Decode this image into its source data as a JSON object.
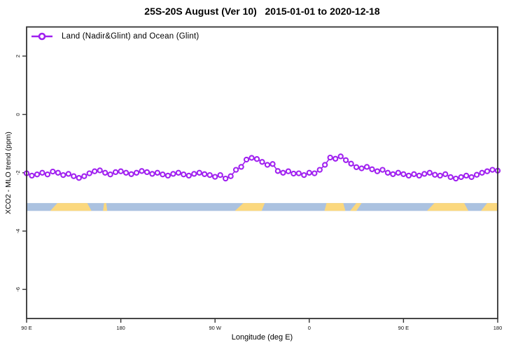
{
  "title": "25S-20S August (Ver 10)   2015-01-01 to 2020-12-18",
  "legend": {
    "label": "Land (Nadir&Glint) and Ocean (Glint)",
    "marker": "open-circle-on-line",
    "color": "#A020F0"
  },
  "chart_data": {
    "type": "line",
    "title": "25S-20S August (Ver 10)   2015-01-01 to 2020-12-18",
    "xlabel": "Longitude (deg E)",
    "ylabel": "XCO2 - MLO trend (ppm)",
    "xlim": [
      90,
      540
    ],
    "ylim": [
      -7,
      3
    ],
    "x_ticks": [
      90,
      180,
      270,
      360,
      450,
      540
    ],
    "x_tick_labels": [
      "90 E",
      "180",
      "90 W",
      "0",
      "90 E",
      "180"
    ],
    "y_ticks": [
      2,
      0,
      -2,
      -4,
      -6
    ],
    "y_tick_labels": [
      "2",
      "0",
      "-2",
      "-4",
      "-6"
    ],
    "grid": false,
    "legend_position": "topleft",
    "axis_color": "#333333",
    "series": [
      {
        "name": "Land (Nadir&Glint) and Ocean (Glint)",
        "color": "#A020F0",
        "marker": "open-circle",
        "x": [
          90,
          95,
          100,
          105,
          110,
          115,
          120,
          125,
          130,
          135,
          140,
          145,
          150,
          155,
          160,
          165,
          170,
          175,
          180,
          185,
          190,
          195,
          200,
          205,
          210,
          215,
          220,
          225,
          230,
          235,
          240,
          245,
          250,
          255,
          260,
          265,
          270,
          275,
          280,
          285,
          290,
          295,
          300,
          305,
          310,
          315,
          320,
          325,
          330,
          335,
          340,
          345,
          350,
          355,
          360,
          365,
          370,
          375,
          380,
          385,
          390,
          395,
          400,
          405,
          410,
          415,
          420,
          425,
          430,
          435,
          440,
          445,
          450,
          455,
          460,
          465,
          470,
          475,
          480,
          485,
          490,
          495,
          500,
          505,
          510,
          515,
          520,
          525,
          530,
          535,
          540
        ],
        "values": [
          -2.02,
          -2.1,
          -2.06,
          -2.0,
          -2.06,
          -1.96,
          -2.0,
          -2.08,
          -2.04,
          -2.12,
          -2.18,
          -2.12,
          -2.02,
          -1.95,
          -1.92,
          -2.0,
          -2.06,
          -1.98,
          -1.95,
          -2.0,
          -2.05,
          -2.0,
          -1.94,
          -1.98,
          -2.04,
          -2.0,
          -2.06,
          -2.1,
          -2.04,
          -2.0,
          -2.06,
          -2.1,
          -2.04,
          -2.0,
          -2.05,
          -2.08,
          -2.14,
          -2.08,
          -2.2,
          -2.12,
          -1.9,
          -1.8,
          -1.55,
          -1.49,
          -1.53,
          -1.63,
          -1.73,
          -1.7,
          -1.94,
          -2.0,
          -1.95,
          -2.03,
          -2.02,
          -2.08,
          -2.0,
          -2.02,
          -1.9,
          -1.73,
          -1.48,
          -1.52,
          -1.44,
          -1.57,
          -1.69,
          -1.81,
          -1.85,
          -1.8,
          -1.88,
          -1.95,
          -1.9,
          -2.0,
          -2.05,
          -2.0,
          -2.05,
          -2.1,
          -2.05,
          -2.1,
          -2.04,
          -2.0,
          -2.07,
          -2.1,
          -2.05,
          -2.15,
          -2.2,
          -2.15,
          -2.1,
          -2.15,
          -2.07,
          -2.0,
          -1.95,
          -1.9,
          -1.93
        ]
      }
    ],
    "map_strip": {
      "description": "land/ocean mask along 25S-20S latitude band",
      "y_range": [
        -3.04,
        -3.31
      ],
      "ocean_color": "#ABC2E0",
      "land_color": "#FBD87E",
      "land_patches": [
        {
          "name": "australia",
          "lon": [
            112.5,
            152
          ],
          "tl": 7,
          "tr": 4
        },
        {
          "name": "new-caledonia",
          "lon": [
            163,
            167
          ],
          "tl": 1,
          "tr": 1
        },
        {
          "name": "south-america",
          "lon": [
            289,
            317.5
          ],
          "tl": 8,
          "br": 3
        },
        {
          "name": "southern-africa",
          "lon": [
            374.5,
            394.5
          ],
          "tl": 2,
          "tr": 2
        },
        {
          "name": "madagascar",
          "lon": [
            399,
            410
          ],
          "tl": 6,
          "br": 5
        },
        {
          "name": "australia-wrap",
          "lon": [
            472.5,
            512
          ],
          "tl": 7,
          "tr": 4
        },
        {
          "name": "sw-pacific-islands",
          "lon": [
            524,
            540
          ],
          "tl": 6
        }
      ]
    }
  }
}
